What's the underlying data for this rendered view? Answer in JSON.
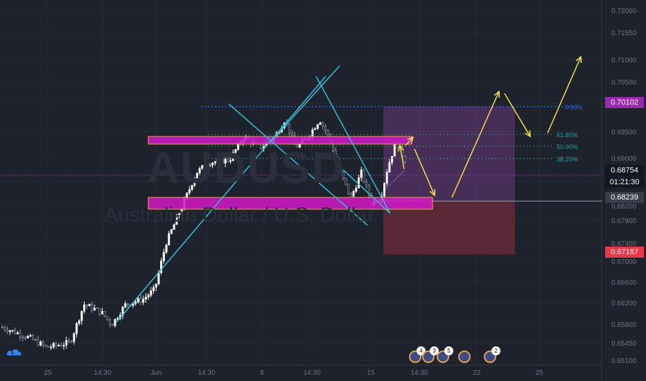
{
  "watermark": {
    "symbol": "AUDUSD",
    "name": "Australian Dollar / U.S. Dollar"
  },
  "price_tags": {
    "target": "0.70102",
    "current": "0.68754",
    "countdown": "01:21:30",
    "entry": "0.68239",
    "stop": "0.67187"
  },
  "fib_labels": [
    "61.80%",
    "50.00%",
    "38.20%",
    "0.00%"
  ],
  "events": [
    {
      "icon": "au-flag-icon",
      "badge": "4"
    },
    {
      "icon": "au-flag-icon",
      "badge": "3"
    },
    {
      "icon": "us-flag-icon",
      "badge": "5"
    },
    {
      "icon": "us-flag-icon",
      "badge": ""
    },
    {
      "icon": "us-flag-icon",
      "badge": "2"
    }
  ],
  "colors": {
    "background": "#1e222d",
    "up": "#ffffff",
    "down": "#ffffff",
    "trendline": "#26c6da",
    "zone": "#d417c8",
    "projection": "#f4e637",
    "target_tag": "#9c27b0",
    "stop_tag": "#f23645",
    "fib": "#26a69a",
    "target_line": "#2962ff"
  },
  "chart_data": {
    "type": "candlestick",
    "yaxis": {
      "ticks": [
        "0.72000",
        "0.71550",
        "0.71000",
        "0.70500",
        "0.70000",
        "0.69500",
        "0.69000",
        "0.68650",
        "0.68200",
        "0.67800",
        "0.67400",
        "0.67000",
        "0.66600",
        "0.66200",
        "0.65800",
        "0.65450",
        "0.65100"
      ]
    },
    "xaxis": {
      "ticks": [
        "25",
        "14:30",
        "Jun",
        "14:30",
        "8",
        "14:30",
        "15",
        "14:30",
        "22",
        "25"
      ]
    },
    "zones": [
      {
        "name": "resistance-zone",
        "price_top": 0.6937,
        "price_bottom": 0.6925
      },
      {
        "name": "support-zone",
        "price_top": 0.6823,
        "price_bottom": 0.6806
      }
    ],
    "levels": {
      "target": 0.70102,
      "entry": 0.68239,
      "stop": 0.67187,
      "current": 0.68754
    },
    "fib_levels": [
      {
        "label": "0.00%",
        "price": 0.70102
      },
      {
        "label": "61.80%",
        "price": 0.69452
      },
      {
        "label": "50.00%",
        "price": 0.69297
      },
      {
        "label": "38.20%",
        "price": 0.69092
      }
    ]
  }
}
